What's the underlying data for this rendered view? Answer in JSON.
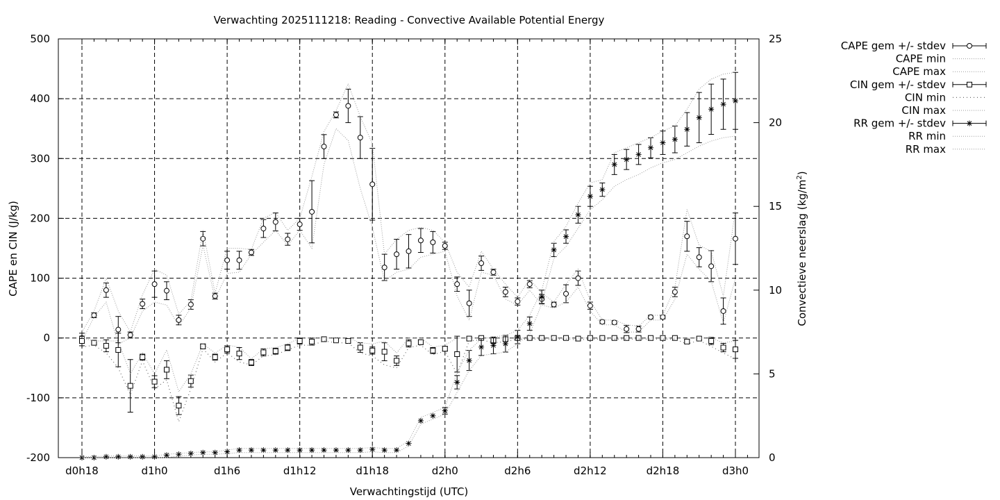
{
  "chart_data": {
    "type": "line",
    "title": "Verwachting 2025111218: Reading - Convective Available Potential Energy",
    "xlabel": "Verwachtingstijd (UTC)",
    "ylabel": "CAPE en CIN (J/kg)",
    "y2label": "Convectieve neerslag (kg/m",
    "y2label_sup": "2",
    "y2label_close": ")",
    "xlim": [
      0,
      57
    ],
    "ylim": [
      -200,
      500
    ],
    "y2lim": [
      0,
      25
    ],
    "grid": true,
    "legend_position": "top-right outside",
    "x_ticks": [
      {
        "x": 0,
        "label": "d0h18"
      },
      {
        "x": 6,
        "label": "d1h0"
      },
      {
        "x": 12,
        "label": "d1h6"
      },
      {
        "x": 18,
        "label": "d1h12"
      },
      {
        "x": 24,
        "label": "d1h18"
      },
      {
        "x": 30,
        "label": "d2h0"
      },
      {
        "x": 36,
        "label": "d2h6"
      },
      {
        "x": 42,
        "label": "d2h12"
      },
      {
        "x": 48,
        "label": "d2h18"
      },
      {
        "x": 54,
        "label": "d3h0"
      }
    ],
    "y_ticks": [
      "-200",
      "-100",
      "0",
      "100",
      "200",
      "300",
      "400",
      "500"
    ],
    "y_tick_values": [
      -200,
      -100,
      0,
      100,
      200,
      300,
      400,
      500
    ],
    "y2_ticks": [
      "0",
      "5",
      "10",
      "15",
      "20",
      "25"
    ],
    "y2_tick_values": [
      0,
      5,
      10,
      15,
      20,
      25
    ],
    "legend": [
      {
        "label": "CAPE gem +/- stdev",
        "kind": "errbar",
        "marker": "circle"
      },
      {
        "label": "CAPE min",
        "kind": "dotted"
      },
      {
        "label": "CAPE max",
        "kind": "dotted"
      },
      {
        "label": "CIN gem +/- stdev",
        "kind": "errbar",
        "marker": "square"
      },
      {
        "label": "CIN min",
        "kind": "dotted-sparse"
      },
      {
        "label": "CIN max",
        "kind": "dotted"
      },
      {
        "label": "RR gem +/- stdev",
        "kind": "errbar",
        "marker": "star"
      },
      {
        "label": "RR min",
        "kind": "dotted"
      },
      {
        "label": "RR max",
        "kind": "dotted"
      }
    ],
    "x": [
      0,
      1,
      2,
      3,
      4,
      5,
      6,
      7,
      8,
      9,
      10,
      11,
      12,
      13,
      14,
      15,
      16,
      17,
      18,
      19,
      20,
      21,
      22,
      23,
      24,
      25,
      26,
      27,
      28,
      29,
      30,
      31,
      32,
      33,
      34,
      35,
      36,
      37,
      38,
      39,
      40,
      41,
      42,
      43,
      44,
      45,
      46,
      47,
      48,
      49,
      50,
      51,
      52,
      53,
      54
    ],
    "series": [
      {
        "name": "CAPE gem +/- stdev",
        "axis": "y1",
        "marker": "circle",
        "values": [
          0,
          38,
          80,
          14,
          5,
          57,
          90,
          79,
          30,
          56,
          166,
          70,
          130,
          130,
          143,
          183,
          194,
          165,
          190,
          211,
          320,
          373,
          388,
          335,
          257,
          118,
          140,
          145,
          163,
          160,
          154,
          90,
          58,
          125,
          110,
          77,
          61,
          90,
          65,
          56,
          74,
          100,
          54,
          27,
          26,
          15,
          15,
          35,
          35,
          77,
          170,
          135,
          120,
          45,
          166
        ],
        "stdev": [
          8,
          4,
          12,
          22,
          5,
          8,
          22,
          15,
          8,
          8,
          12,
          5,
          15,
          15,
          5,
          15,
          15,
          10,
          10,
          52,
          20,
          5,
          28,
          35,
          60,
          22,
          25,
          28,
          20,
          18,
          6,
          12,
          22,
          12,
          5,
          8,
          6,
          6,
          8,
          4,
          15,
          12,
          6,
          3,
          3,
          6,
          5,
          3,
          3,
          8,
          25,
          16,
          26,
          22,
          43
        ]
      },
      {
        "name": "CAPE min",
        "axis": "y1",
        "style": "dotted",
        "values": [
          -5,
          35,
          60,
          -10,
          0,
          45,
          60,
          55,
          20,
          50,
          155,
          65,
          108,
          110,
          140,
          160,
          180,
          155,
          180,
          150,
          290,
          350,
          330,
          250,
          185,
          95,
          110,
          115,
          135,
          140,
          145,
          70,
          30,
          110,
          105,
          65,
          55,
          80,
          55,
          50,
          60,
          85,
          45,
          22,
          22,
          10,
          10,
          30,
          30,
          65,
          140,
          115,
          95,
          25,
          100
        ]
      },
      {
        "name": "CAPE max",
        "axis": "y1",
        "style": "dotted",
        "values": [
          10,
          45,
          100,
          45,
          10,
          72,
          115,
          105,
          40,
          62,
          180,
          75,
          150,
          150,
          148,
          200,
          210,
          180,
          200,
          270,
          345,
          380,
          425,
          370,
          325,
          140,
          165,
          180,
          185,
          180,
          160,
          110,
          85,
          145,
          115,
          90,
          68,
          98,
          75,
          60,
          90,
          115,
          62,
          30,
          30,
          22,
          20,
          38,
          38,
          85,
          215,
          155,
          145,
          70,
          215
        ]
      },
      {
        "name": "CIN gem +/- stdev",
        "axis": "y1",
        "marker": "square",
        "values": [
          -5,
          -8,
          -13,
          -20,
          -80,
          -32,
          -73,
          -53,
          -113,
          -72,
          -14,
          -32,
          -19,
          -26,
          -41,
          -24,
          -22,
          -16,
          -5,
          -6,
          -2,
          -4,
          -5,
          -16,
          -21,
          -23,
          -38,
          -9,
          -7,
          -21,
          -18,
          -27,
          -1,
          0,
          -4,
          -2,
          0,
          0,
          0,
          0,
          0,
          -1,
          0,
          0,
          0,
          0,
          0,
          0,
          0,
          0,
          -6,
          -1,
          -5,
          -16,
          -19
        ],
        "stdev": [
          8,
          4,
          10,
          28,
          44,
          5,
          10,
          15,
          15,
          10,
          4,
          5,
          6,
          10,
          5,
          6,
          5,
          5,
          5,
          6,
          2,
          3,
          3,
          8,
          6,
          15,
          8,
          6,
          4,
          5,
          4,
          30,
          2,
          2,
          5,
          3,
          1,
          1,
          1,
          1,
          1,
          1,
          1,
          1,
          1,
          1,
          1,
          1,
          1,
          1,
          3,
          2,
          6,
          7,
          15
        ]
      },
      {
        "name": "CIN min",
        "axis": "y1",
        "style": "dotted-sparse",
        "values": [
          -15,
          -12,
          -25,
          -50,
          -95,
          -38,
          -85,
          -70,
          -140,
          -85,
          -18,
          -40,
          -25,
          -40,
          -45,
          -30,
          -28,
          -20,
          -12,
          -12,
          -5,
          -8,
          -8,
          -25,
          -30,
          -45,
          -50,
          -16,
          -12,
          -28,
          -22,
          -60,
          -5,
          -3,
          -8,
          -6,
          -2,
          -2,
          -2,
          -2,
          -2,
          -3,
          -2,
          -2,
          -2,
          -2,
          -2,
          -2,
          -2,
          -2,
          -10,
          -4,
          -14,
          -25,
          -35
        ]
      },
      {
        "name": "CIN max",
        "axis": "y1",
        "style": "dotted",
        "values": [
          0,
          -5,
          -5,
          -5,
          -60,
          -25,
          -60,
          -20,
          -90,
          -60,
          -10,
          -25,
          -12,
          -15,
          -35,
          -18,
          -16,
          -10,
          0,
          0,
          0,
          0,
          0,
          -8,
          -10,
          -5,
          -25,
          0,
          0,
          -15,
          -12,
          0,
          0,
          0,
          0,
          0,
          0,
          0,
          0,
          0,
          0,
          0,
          0,
          0,
          0,
          0,
          0,
          0,
          0,
          0,
          0,
          0,
          0,
          -8,
          -5
        ]
      },
      {
        "name": "RR gem +/- stdev",
        "axis": "y2",
        "marker": "star",
        "values": [
          0,
          0,
          0.05,
          0.05,
          0.05,
          0.05,
          0.05,
          0.15,
          0.2,
          0.25,
          0.3,
          0.3,
          0.35,
          0.45,
          0.45,
          0.45,
          0.45,
          0.45,
          0.45,
          0.45,
          0.45,
          0.45,
          0.45,
          0.45,
          0.5,
          0.45,
          0.45,
          0.85,
          2.2,
          2.5,
          2.8,
          4.5,
          5.8,
          6.6,
          6.7,
          6.8,
          7.2,
          8.0,
          9.6,
          12.4,
          13.2,
          14.5,
          15.6,
          16.0,
          17.5,
          17.8,
          18.1,
          18.5,
          18.8,
          19.0,
          19.6,
          20.3,
          20.8,
          21.1,
          21.3
        ],
        "stdev": [
          0,
          0,
          0,
          0,
          0,
          0,
          0,
          0,
          0,
          0,
          0,
          0,
          0,
          0,
          0,
          0,
          0,
          0,
          0,
          0,
          0,
          0,
          0,
          0,
          0,
          0,
          0,
          0,
          0,
          0,
          0.2,
          0.4,
          0.6,
          0.5,
          0.5,
          0.5,
          0.4,
          0.4,
          0.4,
          0.4,
          0.4,
          0.5,
          0.6,
          0.4,
          0.6,
          0.6,
          0.6,
          0.6,
          0.7,
          0.8,
          1.0,
          1.5,
          1.5,
          1.5,
          1.7
        ]
      },
      {
        "name": "RR min",
        "axis": "y2",
        "style": "dotted",
        "values": [
          0,
          0,
          0,
          0,
          0,
          0,
          0,
          0,
          0.1,
          0.15,
          0.2,
          0.2,
          0.25,
          0.3,
          0.3,
          0.3,
          0.3,
          0.3,
          0.3,
          0.3,
          0.3,
          0.3,
          0.3,
          0.3,
          0.35,
          0.3,
          0.3,
          0.7,
          2.0,
          2.3,
          2.6,
          3.9,
          5.2,
          6.1,
          6.2,
          6.3,
          6.8,
          7.4,
          9.2,
          11.9,
          12.6,
          13.7,
          14.8,
          15.4,
          16.2,
          16.6,
          16.9,
          17.3,
          17.6,
          17.8,
          18.2,
          18.6,
          18.9,
          19.1,
          19.2
        ]
      },
      {
        "name": "RR max",
        "axis": "y2",
        "style": "dotted",
        "values": [
          0.05,
          0.05,
          0.1,
          0.1,
          0.1,
          0.1,
          0.1,
          0.2,
          0.25,
          0.3,
          0.35,
          0.35,
          0.45,
          0.55,
          0.55,
          0.55,
          0.55,
          0.55,
          0.55,
          0.55,
          0.55,
          0.55,
          0.55,
          0.55,
          0.6,
          0.55,
          0.55,
          1.0,
          2.4,
          2.7,
          3.0,
          5.1,
          6.4,
          7.1,
          7.2,
          7.3,
          7.6,
          8.5,
          10.0,
          12.9,
          13.8,
          15.2,
          16.4,
          16.6,
          18.2,
          18.5,
          18.8,
          19.1,
          19.5,
          19.8,
          20.8,
          22.0,
          22.6,
          22.9,
          23.0
        ]
      }
    ]
  }
}
